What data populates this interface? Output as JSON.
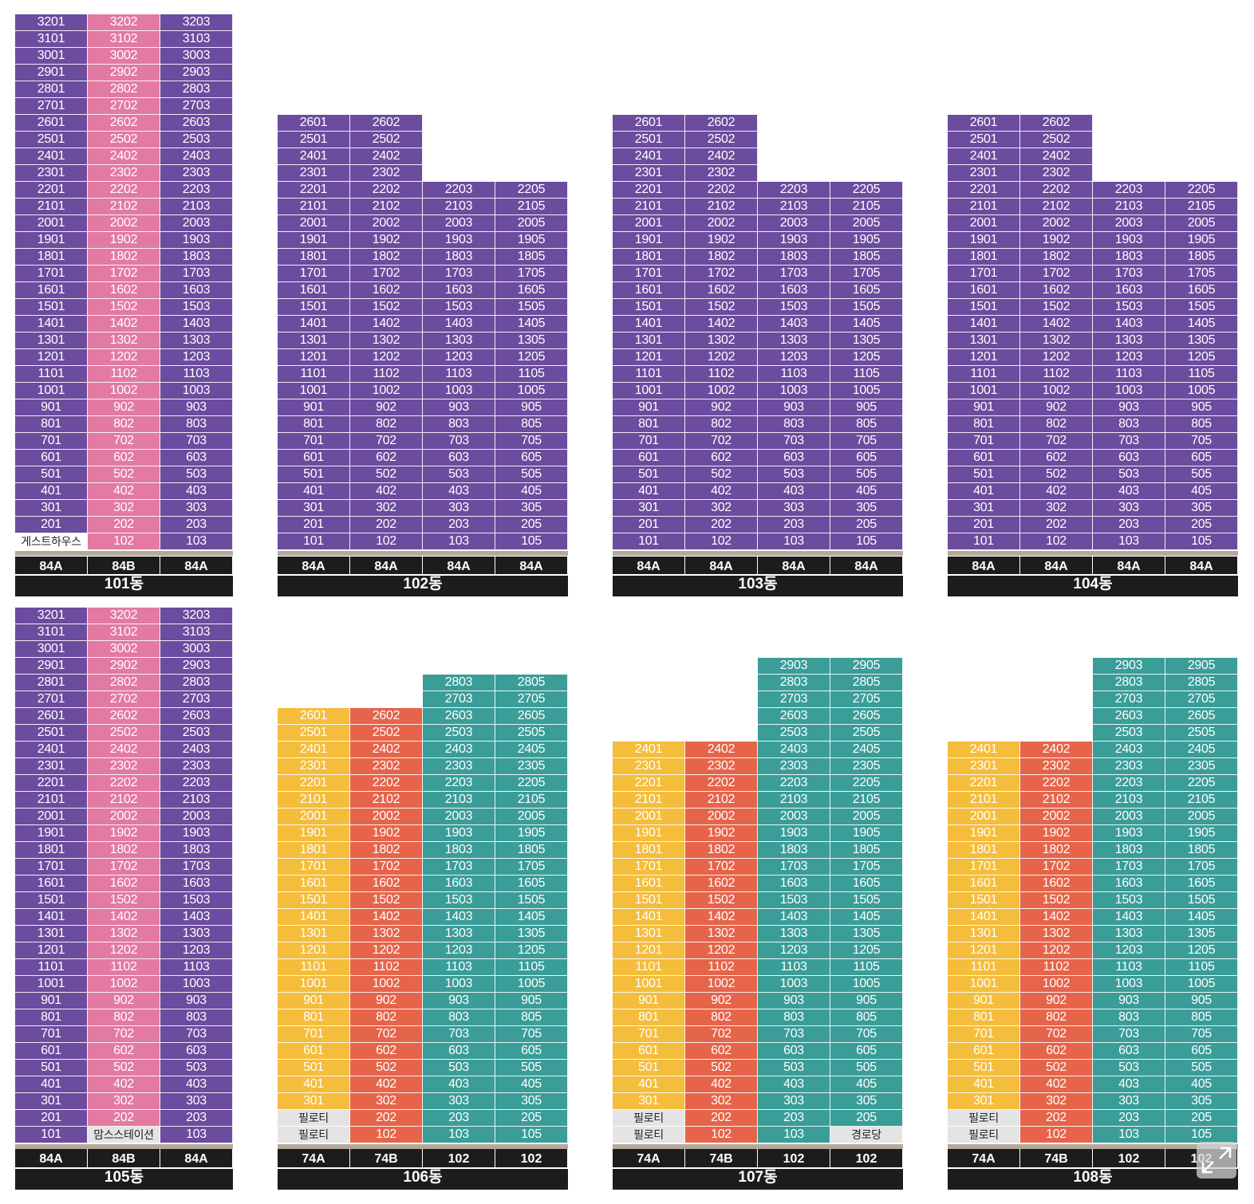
{
  "colors": {
    "purple": "#6b4c9e",
    "pink": "#e27aa2",
    "yellow": "#f5bd3c",
    "orange": "#e6644a",
    "teal": "#3a9d98",
    "lightgray": "#e4e4e4",
    "white": "#ffffff",
    "dark": "#1c1c1c",
    "strip": "#b5aa9a"
  },
  "icons": {
    "expand": "expand-arrows-icon"
  },
  "buildings": [
    {
      "name": "101동",
      "columns": [
        {
          "type": "84A",
          "line": "01",
          "color": "purple",
          "top_floor": 32,
          "overrides": {
            "1": {
              "label": "게스트하우스",
              "color": "white"
            }
          }
        },
        {
          "type": "84B",
          "line": "02",
          "color": "pink",
          "top_floor": 32
        },
        {
          "type": "84A",
          "line": "03",
          "color": "purple",
          "top_floor": 32
        }
      ]
    },
    {
      "name": "102동",
      "columns": [
        {
          "type": "84A",
          "line": "01",
          "color": "purple",
          "top_floor": 26
        },
        {
          "type": "84A",
          "line": "02",
          "color": "purple",
          "top_floor": 26
        },
        {
          "type": "84A",
          "line": "03",
          "color": "purple",
          "top_floor": 22
        },
        {
          "type": "84A",
          "line": "05",
          "color": "purple",
          "top_floor": 22
        }
      ]
    },
    {
      "name": "103동",
      "columns": [
        {
          "type": "84A",
          "line": "01",
          "color": "purple",
          "top_floor": 26
        },
        {
          "type": "84A",
          "line": "02",
          "color": "purple",
          "top_floor": 26
        },
        {
          "type": "84A",
          "line": "03",
          "color": "purple",
          "top_floor": 22
        },
        {
          "type": "84A",
          "line": "05",
          "color": "purple",
          "top_floor": 22
        }
      ]
    },
    {
      "name": "104동",
      "columns": [
        {
          "type": "84A",
          "line": "01",
          "color": "purple",
          "top_floor": 26
        },
        {
          "type": "84A",
          "line": "02",
          "color": "purple",
          "top_floor": 26
        },
        {
          "type": "84A",
          "line": "03",
          "color": "purple",
          "top_floor": 22
        },
        {
          "type": "84A",
          "line": "05",
          "color": "purple",
          "top_floor": 22
        }
      ]
    },
    {
      "name": "105동",
      "columns": [
        {
          "type": "84A",
          "line": "01",
          "color": "purple",
          "top_floor": 32
        },
        {
          "type": "84B",
          "line": "02",
          "color": "pink",
          "top_floor": 32,
          "overrides": {
            "1": {
              "label": "맘스스테이션",
              "color": "lightgray"
            }
          }
        },
        {
          "type": "84A",
          "line": "03",
          "color": "purple",
          "top_floor": 32
        }
      ]
    },
    {
      "name": "106동",
      "columns": [
        {
          "type": "74A",
          "line": "01",
          "color": "yellow",
          "top_floor": 26,
          "overrides": {
            "1": {
              "label": "필로티",
              "color": "lightgray"
            },
            "2": {
              "label": "필로티",
              "color": "lightgray"
            }
          }
        },
        {
          "type": "74B",
          "line": "02",
          "color": "orange",
          "top_floor": 26
        },
        {
          "type": "102",
          "line": "03",
          "color": "teal",
          "top_floor": 28
        },
        {
          "type": "102",
          "line": "05",
          "color": "teal",
          "top_floor": 28
        }
      ]
    },
    {
      "name": "107동",
      "columns": [
        {
          "type": "74A",
          "line": "01",
          "color": "yellow",
          "top_floor": 24,
          "overrides": {
            "1": {
              "label": "필로티",
              "color": "lightgray"
            },
            "2": {
              "label": "필로티",
              "color": "lightgray"
            }
          }
        },
        {
          "type": "74B",
          "line": "02",
          "color": "orange",
          "top_floor": 24
        },
        {
          "type": "102",
          "line": "03",
          "color": "teal",
          "top_floor": 29
        },
        {
          "type": "102",
          "line": "05",
          "color": "teal",
          "top_floor": 29,
          "overrides": {
            "1": {
              "label": "경로당",
              "color": "lightgray"
            }
          }
        }
      ]
    },
    {
      "name": "108동",
      "columns": [
        {
          "type": "74A",
          "line": "01",
          "color": "yellow",
          "top_floor": 24,
          "overrides": {
            "1": {
              "label": "필로티",
              "color": "lightgray"
            },
            "2": {
              "label": "필로티",
              "color": "lightgray"
            }
          }
        },
        {
          "type": "74B",
          "line": "02",
          "color": "orange",
          "top_floor": 24
        },
        {
          "type": "102",
          "line": "03",
          "color": "teal",
          "top_floor": 29
        },
        {
          "type": "102",
          "line": "05",
          "color": "teal",
          "top_floor": 29
        }
      ]
    }
  ]
}
